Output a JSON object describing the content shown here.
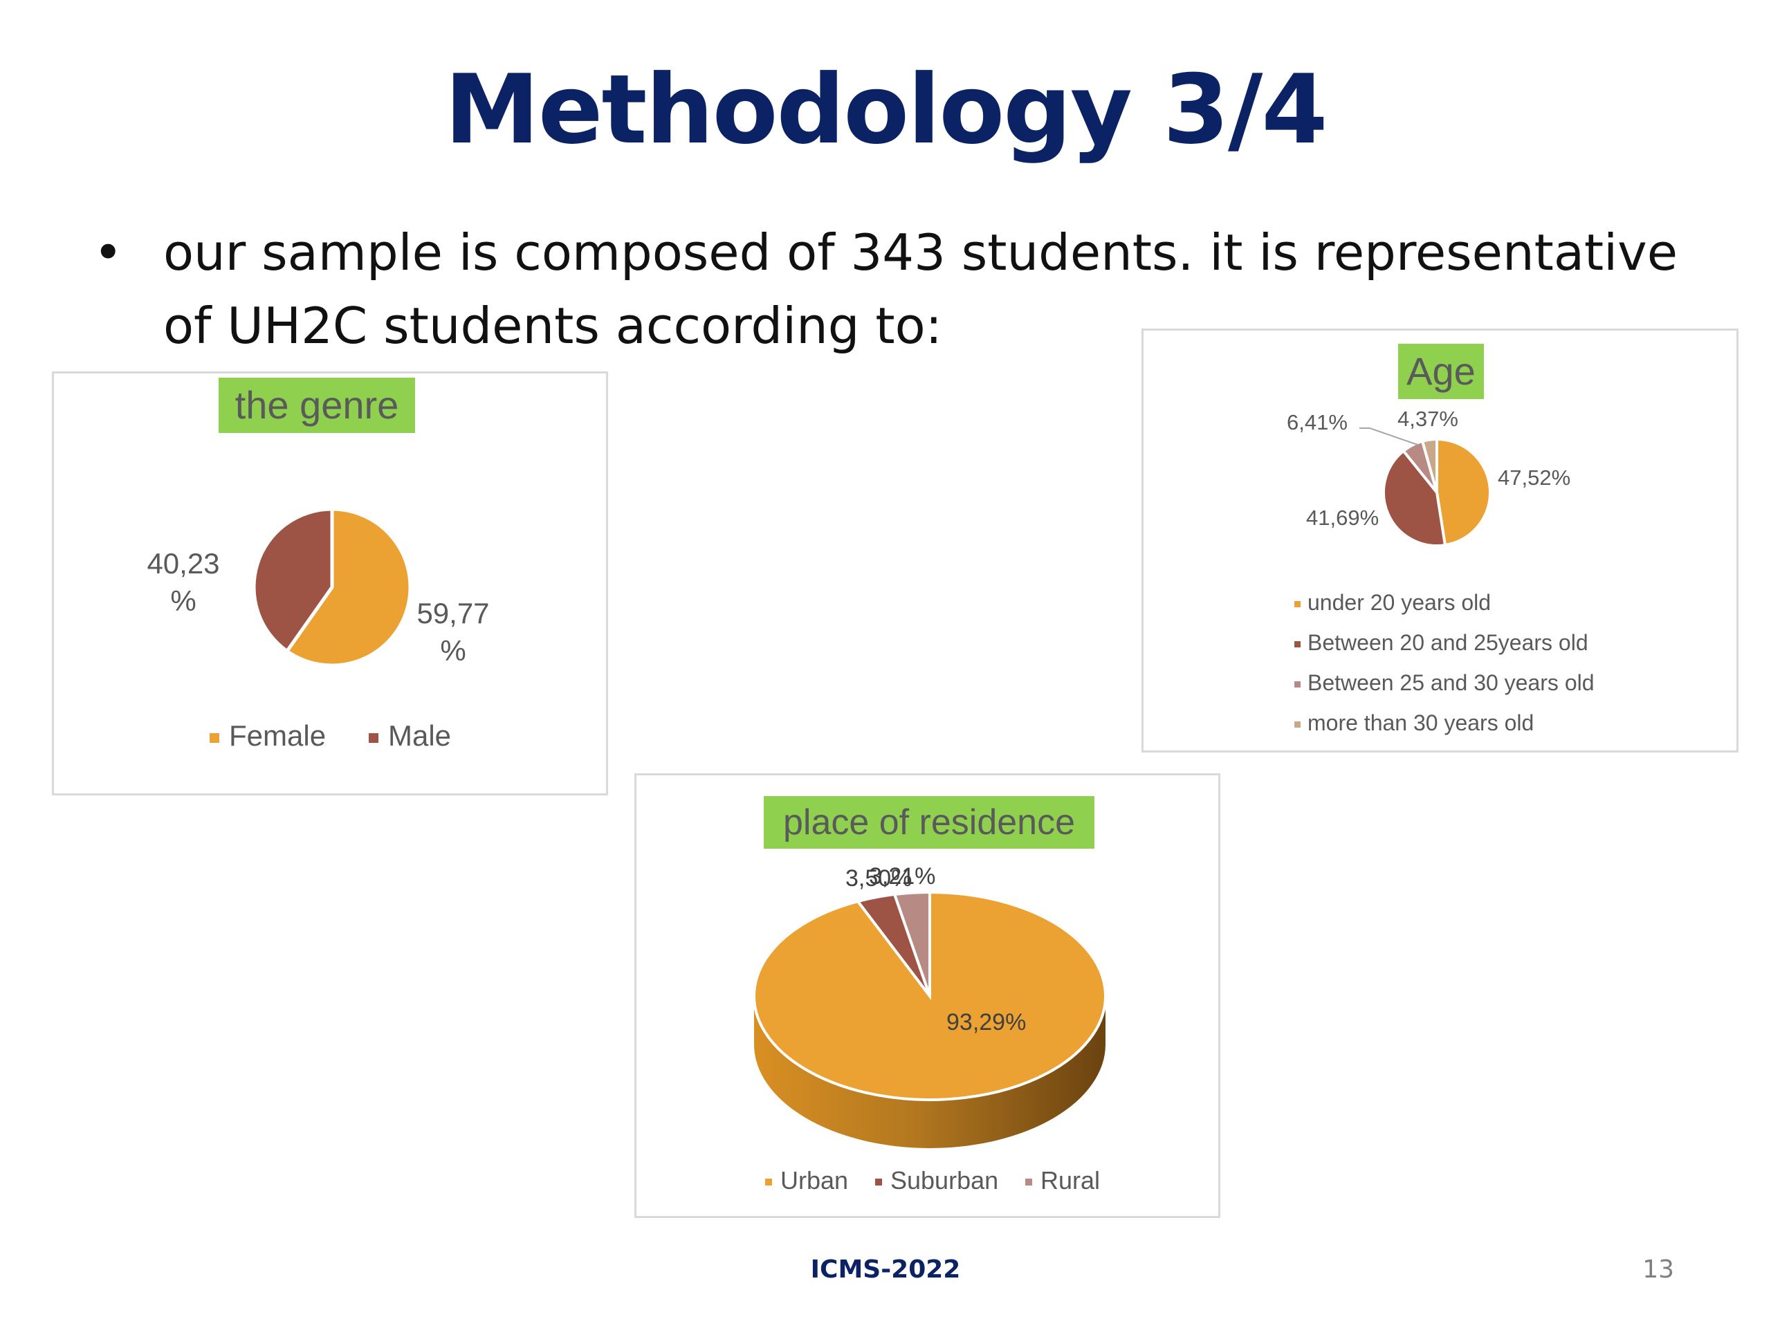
{
  "slide": {
    "title": "Methodology 3/4",
    "bullet": "our sample is composed of 343 students. it is representative of UH2C students according to:",
    "footer": "ICMS-2022",
    "page_number": "13"
  },
  "colors": {
    "title": "#0b2265",
    "orange": "#eba232",
    "brown": "#9e5444",
    "rose": "#b88a84",
    "tan": "#c9a78a",
    "chart_title_bg": "#8fd14f"
  },
  "chart_data": [
    {
      "type": "pie",
      "title": "the genre",
      "categories": [
        "Female",
        "Male"
      ],
      "values": [
        59.77,
        40.23
      ],
      "data_labels": [
        "59,77 %",
        "40,23 %"
      ],
      "legend": "bottom"
    },
    {
      "type": "pie",
      "title": "Age",
      "categories": [
        "under 20 years old",
        "Between 20 and 25years old",
        "Between 25 and 30 years old",
        "more than 30 years old"
      ],
      "values": [
        47.52,
        41.69,
        6.41,
        4.37
      ],
      "data_labels": [
        "47,52%",
        "41,69%",
        "6,41%",
        "4,37%"
      ],
      "legend": "bottom"
    },
    {
      "type": "pie",
      "title": "place of residence",
      "categories": [
        "Urban",
        "Suburban",
        "Rural"
      ],
      "values": [
        93.29,
        3.5,
        3.21
      ],
      "data_labels": [
        "93,29%",
        "3,50%",
        "3,21%"
      ],
      "legend": "bottom"
    }
  ]
}
